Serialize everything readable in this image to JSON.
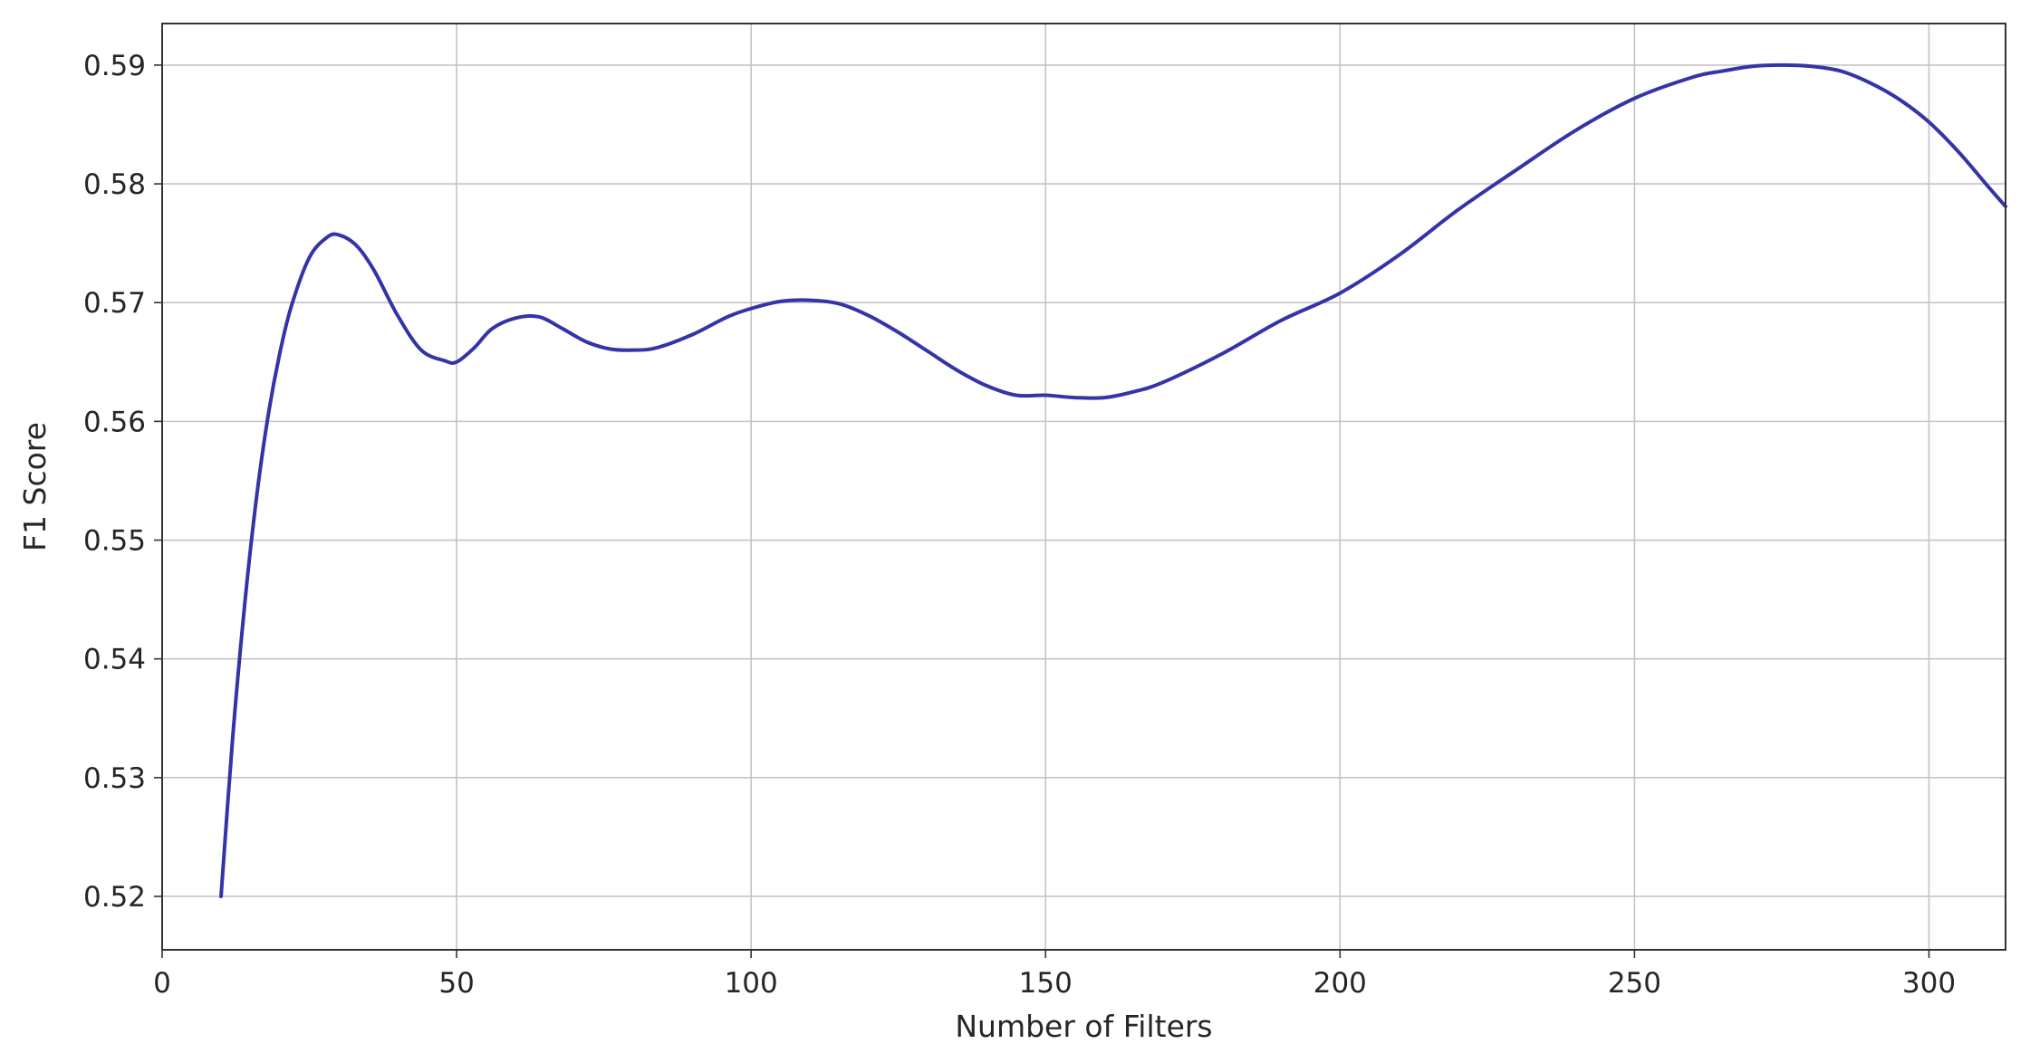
{
  "chart_data": {
    "type": "line",
    "title": "",
    "xlabel": "Number of Filters",
    "ylabel": "F1 Score",
    "xlim": [
      0,
      313
    ],
    "ylim": [
      0.5155,
      0.5935
    ],
    "xticks": [
      0,
      50,
      100,
      150,
      200,
      250,
      300
    ],
    "xtick_labels": [
      "0",
      "50",
      "100",
      "150",
      "200",
      "250",
      "300"
    ],
    "yticks": [
      0.52,
      0.53,
      0.54,
      0.55,
      0.56,
      0.57,
      0.58,
      0.59
    ],
    "ytick_labels": [
      "0.52",
      "0.53",
      "0.54",
      "0.55",
      "0.56",
      "0.57",
      "0.58",
      "0.59"
    ],
    "grid": true,
    "legend": "none",
    "series": [
      {
        "color": "#3434a8",
        "x": [
          10,
          12,
          14,
          16,
          18,
          20,
          22,
          25,
          28,
          30,
          33,
          36,
          40,
          44,
          48,
          50,
          53,
          56,
          60,
          64,
          68,
          72,
          76,
          80,
          84,
          90,
          96,
          100,
          105,
          110,
          115,
          120,
          125,
          130,
          135,
          140,
          145,
          150,
          155,
          160,
          165,
          170,
          180,
          190,
          200,
          210,
          220,
          230,
          240,
          250,
          260,
          265,
          270,
          275,
          280,
          285,
          290,
          295,
          300,
          305,
          310,
          313
        ],
        "y": [
          0.52,
          0.5335,
          0.5445,
          0.5535,
          0.5605,
          0.5658,
          0.5698,
          0.5738,
          0.5755,
          0.5757,
          0.5748,
          0.5727,
          0.5689,
          0.566,
          0.5651,
          0.565,
          0.5662,
          0.5678,
          0.5687,
          0.5688,
          0.5678,
          0.5667,
          0.5661,
          0.566,
          0.5662,
          0.5673,
          0.5688,
          0.5695,
          0.5701,
          0.5702,
          0.5699,
          0.5689,
          0.5675,
          0.5659,
          0.5643,
          0.563,
          0.5622,
          0.5622,
          0.562,
          0.562,
          0.5625,
          0.5633,
          0.5657,
          0.5685,
          0.5708,
          0.574,
          0.5778,
          0.5812,
          0.5845,
          0.5872,
          0.589,
          0.5895,
          0.5899,
          0.59,
          0.5899,
          0.5895,
          0.5885,
          0.5871,
          0.5852,
          0.5827,
          0.5798,
          0.5781
        ]
      }
    ]
  }
}
